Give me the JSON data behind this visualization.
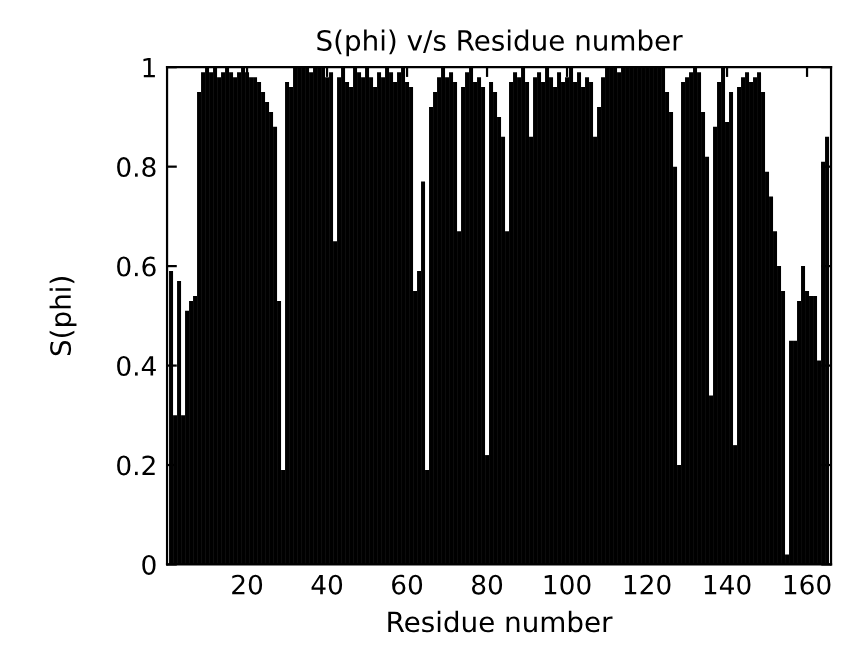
{
  "chart_data": {
    "type": "bar",
    "title": "S(phi) v/s Residue number",
    "xlabel": "Residue number",
    "ylabel": "S(phi)",
    "color": "#000000",
    "x": [
      1,
      2,
      3,
      4,
      5,
      6,
      7,
      8,
      9,
      10,
      11,
      12,
      13,
      14,
      15,
      16,
      17,
      18,
      19,
      20,
      21,
      22,
      23,
      24,
      25,
      26,
      27,
      28,
      29,
      30,
      31,
      32,
      33,
      34,
      35,
      36,
      37,
      38,
      39,
      40,
      41,
      42,
      43,
      44,
      45,
      46,
      47,
      48,
      49,
      50,
      51,
      52,
      53,
      54,
      55,
      56,
      57,
      58,
      59,
      60,
      61,
      62,
      63,
      64,
      65,
      66,
      67,
      68,
      69,
      70,
      71,
      72,
      73,
      74,
      75,
      76,
      77,
      78,
      79,
      80,
      81,
      82,
      83,
      84,
      85,
      86,
      87,
      88,
      89,
      90,
      91,
      92,
      93,
      94,
      95,
      96,
      97,
      98,
      99,
      100,
      101,
      102,
      103,
      104,
      105,
      106,
      107,
      108,
      109,
      110,
      111,
      112,
      113,
      114,
      115,
      116,
      117,
      118,
      119,
      120,
      121,
      122,
      123,
      124,
      125,
      126,
      127,
      128,
      129,
      130,
      131,
      132,
      133,
      134,
      135,
      136,
      137,
      138,
      139,
      140,
      141,
      142,
      143,
      144,
      145,
      146,
      147,
      148,
      149,
      150,
      151,
      152,
      153,
      154,
      155,
      156,
      157,
      158,
      159,
      160,
      161,
      162,
      163,
      164,
      165
    ],
    "values": [
      0.59,
      0.3,
      0.57,
      0.3,
      0.51,
      0.53,
      0.54,
      0.95,
      0.99,
      1,
      0.99,
      1,
      0.98,
      0.99,
      1,
      0.99,
      0.98,
      0.99,
      1,
      0.99,
      0.98,
      0.98,
      0.97,
      0.95,
      0.93,
      0.91,
      0.88,
      0.53,
      0.19,
      0.97,
      0.96,
      1,
      1,
      1,
      1,
      0.99,
      1,
      1,
      1,
      0.98,
      0.99,
      0.65,
      0.98,
      1,
      0.97,
      0.96,
      1,
      0.99,
      0.98,
      1,
      0.98,
      0.96,
      0.99,
      0.98,
      1,
      0.99,
      0.97,
      0.99,
      1,
      0.97,
      0.96,
      0.55,
      0.59,
      0.77,
      0.19,
      0.92,
      0.95,
      0.98,
      1,
      0.98,
      0.99,
      0.97,
      0.67,
      0.96,
      0.99,
      1,
      0.97,
      0.98,
      0.96,
      0.22,
      0.97,
      0.95,
      0.9,
      0.86,
      0.67,
      0.97,
      0.99,
      0.98,
      1,
      0.97,
      0.86,
      0.98,
      0.99,
      0.97,
      1,
      0.98,
      0.96,
      0.99,
      0.97,
      0.98,
      1,
      0.97,
      0.99,
      0.96,
      0.98,
      0.97,
      0.86,
      0.92,
      0.98,
      1,
      1,
      1,
      0.99,
      1,
      1,
      1,
      1,
      1,
      1,
      1,
      1,
      1,
      1,
      1,
      0.95,
      0.91,
      0.8,
      0.2,
      0.97,
      0.98,
      0.99,
      1,
      0.99,
      0.91,
      0.82,
      0.34,
      0.88,
      0.97,
      1,
      0.89,
      0.95,
      0.24,
      0.96,
      0.98,
      0.99,
      0.97,
      0.98,
      0.99,
      0.95,
      0.79,
      0.74,
      0.67,
      0.6,
      0.55,
      0.02,
      0.45,
      0.45,
      0.53,
      0.6,
      0.55,
      0.54,
      0.54,
      0.41,
      0.81,
      0.86
    ],
    "xlim": [
      0,
      166
    ],
    "xticks": [
      20,
      40,
      60,
      80,
      100,
      120,
      140,
      160
    ],
    "ylim": [
      0,
      1
    ],
    "yticks": [
      0,
      0.2,
      0.4,
      0.6,
      0.8,
      1
    ],
    "grid": false
  }
}
